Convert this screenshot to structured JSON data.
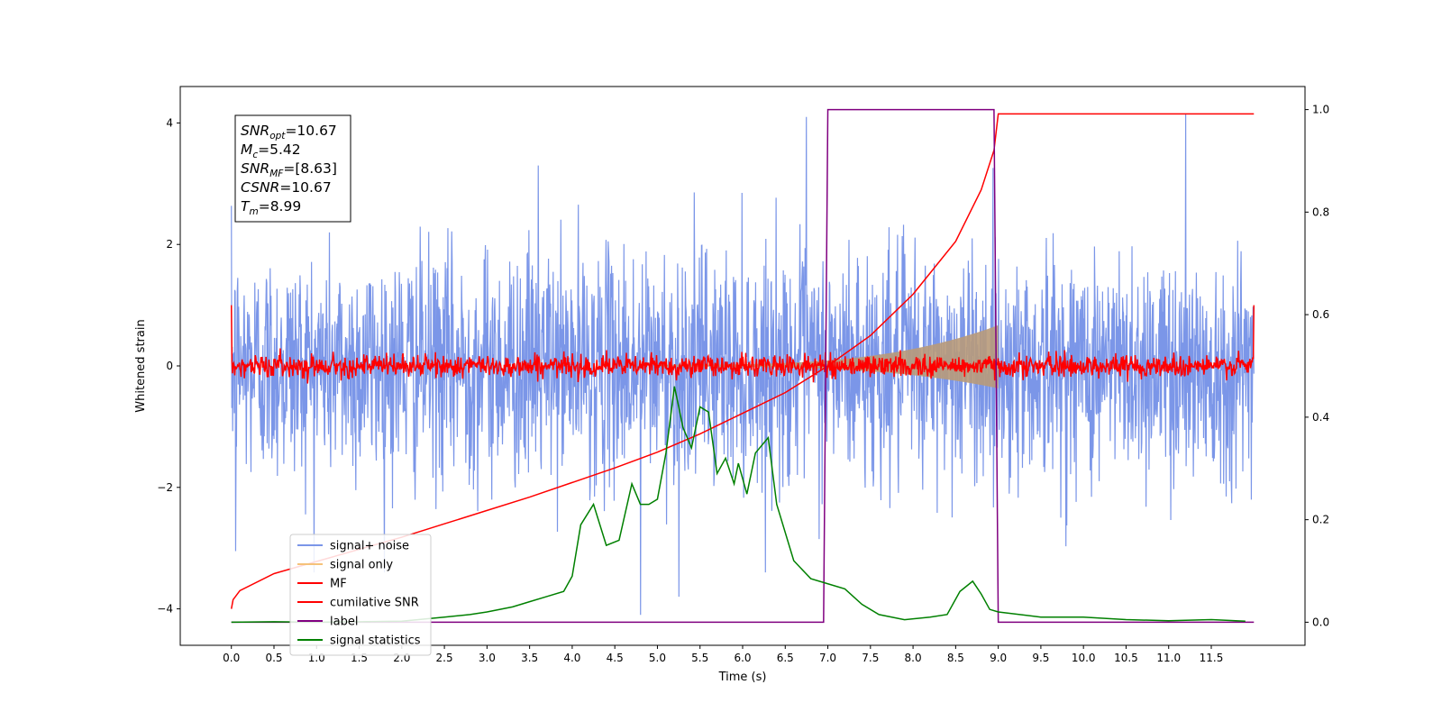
{
  "chart_data": {
    "type": "line",
    "xlabel": "Time (s)",
    "ylabel": "Whitened strain",
    "xlim": [
      -0.6,
      12.6
    ],
    "ylim": [
      -4.6,
      4.6
    ],
    "y2lim": [
      -0.045,
      1.045
    ],
    "xticks": [
      0.0,
      0.5,
      1.0,
      1.5,
      2.0,
      2.5,
      3.0,
      3.5,
      4.0,
      4.5,
      5.0,
      5.5,
      6.0,
      6.5,
      7.0,
      7.5,
      8.0,
      8.5,
      9.0,
      9.5,
      10.0,
      10.5,
      11.0,
      11.5
    ],
    "xtick_labels": [
      "0.0",
      "0.5",
      "1.0",
      "1.5",
      "2.0",
      "2.5",
      "3.0",
      "3.5",
      "4.0",
      "4.5",
      "5.0",
      "5.5",
      "6.0",
      "6.5",
      "7.0",
      "7.5",
      "8.0",
      "8.5",
      "9.0",
      "9.5",
      "10.0",
      "10.5",
      "11.0",
      "11.5"
    ],
    "yticks": [
      -4,
      -2,
      0,
      2,
      4
    ],
    "ytick_labels": [
      "−4",
      "−2",
      "0",
      "2",
      "4"
    ],
    "y2ticks": [
      0.0,
      0.2,
      0.4,
      0.6,
      0.8,
      1.0
    ],
    "y2tick_labels": [
      "0.0",
      "0.2",
      "0.4",
      "0.6",
      "0.8",
      "1.0"
    ],
    "grid": false,
    "legend_position": "lower-left",
    "annotation": {
      "position": "top-left",
      "lines": [
        {
          "sym": "SNR",
          "sub": "opt",
          "val": "=10.67"
        },
        {
          "sym": "M",
          "sub": "c",
          "val": "=5.42"
        },
        {
          "sym": "SNR",
          "sub": "MF",
          "val": "=[8.63]"
        },
        {
          "sym": "CSNR",
          "sub": "",
          "val": "=10.67"
        },
        {
          "sym": "T",
          "sub": "m",
          "val": "=8.99"
        }
      ]
    },
    "series": [
      {
        "name": "signal+ noise",
        "kind": "noise",
        "axis": "left",
        "color": "#7b96e8",
        "t_start": 0.0,
        "t_end": 12.0,
        "sigma": 0.95,
        "spikes": [
          {
            "x": 4.8,
            "y": -4.1
          },
          {
            "x": 5.25,
            "y": -3.8
          },
          {
            "x": 6.75,
            "y": 4.1
          },
          {
            "x": 11.2,
            "y": 4.15
          },
          {
            "x": 0.05,
            "y": -3.05
          },
          {
            "x": 3.6,
            "y": 3.3
          }
        ]
      },
      {
        "name": "signal only",
        "kind": "chirp",
        "axis": "left",
        "color": "#f5c27a",
        "t_start": 5.0,
        "t_end": 9.0,
        "amp_end": 0.65
      },
      {
        "name": "MF",
        "kind": "mf_noise",
        "axis": "left",
        "color": "#ff0000",
        "t_start": 0.0,
        "t_end": 12.0,
        "sigma": 0.09,
        "edge_values": [
          1.0,
          1.0
        ]
      },
      {
        "name": "cumilative SNR",
        "kind": "line",
        "axis": "left",
        "color": "#ff0000",
        "x": [
          0.0,
          0.02,
          0.1,
          0.5,
          1.0,
          1.5,
          2.0,
          2.5,
          3.0,
          3.5,
          4.0,
          4.5,
          5.0,
          5.5,
          6.0,
          6.5,
          7.0,
          7.5,
          8.0,
          8.5,
          8.8,
          8.95,
          9.0,
          12.0
        ],
        "y": [
          -4.0,
          -3.85,
          -3.7,
          -3.42,
          -3.22,
          -3.02,
          -2.82,
          -2.6,
          -2.38,
          -2.16,
          -1.92,
          -1.68,
          -1.42,
          -1.12,
          -0.78,
          -0.44,
          0.0,
          0.5,
          1.18,
          2.05,
          2.9,
          3.55,
          4.15,
          4.15
        ]
      },
      {
        "name": "label",
        "kind": "line",
        "axis": "right",
        "color": "#800080",
        "x": [
          0.0,
          6.95,
          7.0,
          8.95,
          9.0,
          12.0
        ],
        "y": [
          0.0,
          0.0,
          1.0,
          1.0,
          0.0,
          0.0
        ]
      },
      {
        "name": "signal statistics",
        "kind": "line",
        "axis": "right",
        "color": "#008000",
        "x": [
          0.0,
          0.5,
          1.0,
          1.5,
          2.0,
          2.5,
          2.8,
          3.0,
          3.3,
          3.5,
          3.7,
          3.9,
          4.0,
          4.1,
          4.25,
          4.4,
          4.55,
          4.7,
          4.8,
          4.9,
          5.0,
          5.1,
          5.2,
          5.3,
          5.4,
          5.5,
          5.6,
          5.7,
          5.8,
          5.9,
          5.95,
          6.05,
          6.15,
          6.3,
          6.4,
          6.6,
          6.8,
          7.0,
          7.2,
          7.4,
          7.6,
          7.9,
          8.2,
          8.4,
          8.55,
          8.7,
          8.8,
          8.9,
          9.0,
          9.5,
          10.0,
          10.5,
          11.0,
          11.5,
          11.9
        ],
        "y": [
          0.0,
          0.001,
          0.0,
          0.001,
          0.002,
          0.01,
          0.015,
          0.02,
          0.03,
          0.04,
          0.05,
          0.06,
          0.09,
          0.19,
          0.23,
          0.15,
          0.16,
          0.27,
          0.23,
          0.23,
          0.24,
          0.33,
          0.46,
          0.38,
          0.34,
          0.42,
          0.41,
          0.29,
          0.32,
          0.27,
          0.31,
          0.25,
          0.33,
          0.36,
          0.23,
          0.12,
          0.085,
          0.075,
          0.065,
          0.035,
          0.015,
          0.005,
          0.01,
          0.015,
          0.06,
          0.08,
          0.055,
          0.025,
          0.02,
          0.01,
          0.01,
          0.005,
          0.003,
          0.005,
          0.002
        ]
      }
    ]
  }
}
